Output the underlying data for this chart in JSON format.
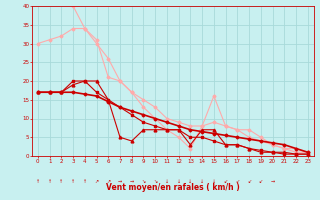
{
  "background_color": "#c8f0f0",
  "grid_color": "#a8dada",
  "xlabel": "Vent moyen/en rafales ( km/h )",
  "xlabel_color": "#cc0000",
  "tick_color": "#cc0000",
  "xlim": [
    -0.5,
    23.5
  ],
  "ylim": [
    0,
    40
  ],
  "yticks": [
    0,
    5,
    10,
    15,
    20,
    25,
    30,
    35,
    40
  ],
  "xticks": [
    0,
    1,
    2,
    3,
    4,
    5,
    6,
    7,
    8,
    9,
    10,
    11,
    12,
    13,
    14,
    15,
    16,
    17,
    18,
    19,
    20,
    21,
    22,
    23
  ],
  "lines": [
    {
      "x": [
        0,
        1,
        2,
        3,
        4,
        5,
        6,
        7,
        8,
        9,
        10,
        11,
        12,
        13,
        14,
        15,
        16,
        17,
        18,
        19,
        20,
        21,
        22,
        23
      ],
      "y": [
        30,
        31,
        32,
        34,
        34,
        30,
        26,
        20,
        17,
        15,
        13,
        10,
        9,
        8,
        8,
        9,
        8,
        7,
        5,
        4,
        3,
        2,
        2,
        1
      ],
      "color": "#ffaaaa",
      "marker": "D",
      "markersize": 1.5,
      "linewidth": 0.8
    },
    {
      "x": [
        3,
        4,
        5,
        6,
        7,
        8,
        9,
        10,
        11,
        12,
        13,
        14,
        15,
        16,
        17,
        18,
        19,
        20,
        21,
        22,
        23
      ],
      "y": [
        40,
        34,
        31,
        21,
        20,
        17,
        13,
        10,
        7,
        5,
        2,
        8,
        16,
        8,
        7,
        7,
        5,
        3,
        2,
        1,
        1
      ],
      "color": "#ffaaaa",
      "marker": "D",
      "markersize": 1.5,
      "linewidth": 0.8
    },
    {
      "x": [
        0,
        1,
        2,
        3,
        4,
        5,
        6,
        7,
        8,
        9,
        10,
        11,
        12,
        13,
        14,
        15,
        16,
        17,
        18,
        19,
        20,
        21,
        22,
        23
      ],
      "y": [
        17,
        17,
        17,
        19,
        20,
        20,
        15,
        5,
        4,
        7,
        7,
        7,
        7,
        3,
        7,
        7,
        3,
        3,
        2,
        1,
        1,
        1,
        0.5,
        0.5
      ],
      "color": "#cc0000",
      "marker": "^",
      "markersize": 2.0,
      "linewidth": 0.8
    },
    {
      "x": [
        0,
        1,
        2,
        3,
        4,
        5,
        6,
        7,
        8,
        9,
        10,
        11,
        12,
        13,
        14,
        15,
        16,
        17,
        18,
        19,
        20,
        21,
        22,
        23
      ],
      "y": [
        17,
        17,
        17,
        17,
        16.5,
        16,
        14.5,
        13,
        12,
        11,
        10,
        9,
        8,
        7,
        6.5,
        6,
        5.5,
        5,
        4.5,
        4,
        3.5,
        3,
        2,
        1
      ],
      "color": "#cc0000",
      "marker": "D",
      "markersize": 1.5,
      "linewidth": 1.2
    },
    {
      "x": [
        0,
        1,
        2,
        3,
        4,
        5,
        6,
        7,
        8,
        9,
        10,
        11,
        12,
        13,
        14,
        15,
        16,
        17,
        18,
        19,
        20,
        21,
        22,
        23
      ],
      "y": [
        17,
        17,
        17,
        20,
        20,
        17,
        15,
        13,
        11,
        9,
        8,
        7,
        7,
        5,
        5,
        4,
        3,
        3,
        2,
        1.5,
        1,
        0.5,
        0.5,
        0.5
      ],
      "color": "#cc0000",
      "marker": "s",
      "markersize": 1.5,
      "linewidth": 0.8
    }
  ],
  "wind_arrows": [
    "↑",
    "↑",
    "↑",
    "↑",
    "↑",
    "↗",
    "↗",
    "→",
    "→",
    "↘",
    "↘",
    "↓",
    "↓",
    "↓",
    "↓",
    "↓",
    "↙",
    "↙",
    "↙",
    "↙",
    "→"
  ]
}
